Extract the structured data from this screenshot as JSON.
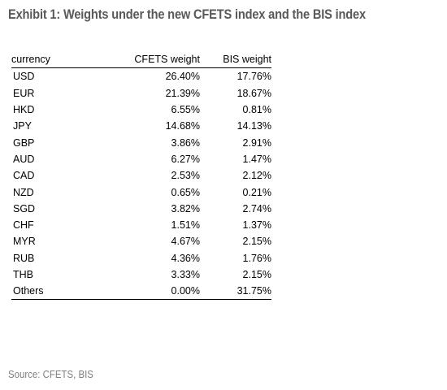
{
  "title": "Exhibit 1: Weights under the new CFETS index and the BIS index",
  "source": "Source: CFETS, BIS",
  "chart_data": {
    "type": "table",
    "title": "Exhibit 1: Weights under the new CFETS index and the BIS index",
    "columns": [
      "currency",
      "CFETS weight",
      "BIS weight"
    ],
    "rows": [
      [
        "USD",
        "26.40%",
        "17.76%"
      ],
      [
        "EUR",
        "21.39%",
        "18.67%"
      ],
      [
        "HKD",
        "6.55%",
        "0.81%"
      ],
      [
        "JPY",
        "14.68%",
        "14.13%"
      ],
      [
        "GBP",
        "3.86%",
        "2.91%"
      ],
      [
        "AUD",
        "6.27%",
        "1.47%"
      ],
      [
        "CAD",
        "2.53%",
        "2.12%"
      ],
      [
        "NZD",
        "0.65%",
        "0.21%"
      ],
      [
        "SGD",
        "3.82%",
        "2.74%"
      ],
      [
        "CHF",
        "1.51%",
        "1.37%"
      ],
      [
        "MYR",
        "4.67%",
        "2.15%"
      ],
      [
        "RUB",
        "4.36%",
        "1.76%"
      ],
      [
        "THB",
        "3.33%",
        "2.15%"
      ],
      [
        "Others",
        "0.00%",
        "31.75%"
      ]
    ]
  }
}
